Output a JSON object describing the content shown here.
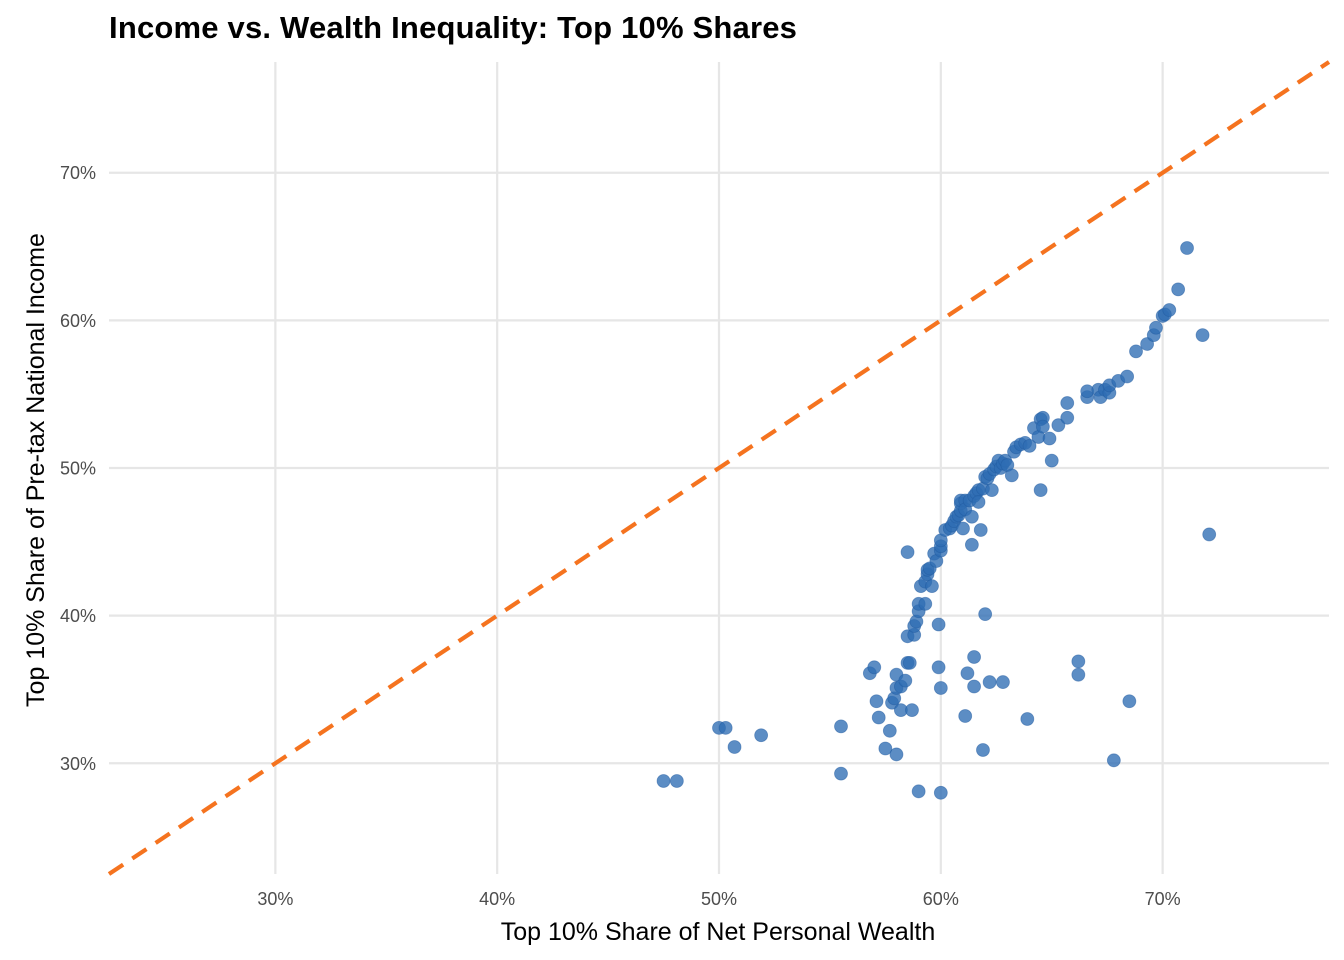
{
  "chart_data": {
    "type": "scatter",
    "title": "Income vs. Wealth Inequality: Top 10% Shares",
    "xlabel": "Top 10% Share of Net Personal Wealth",
    "ylabel": "Top 10% Share of Pre-tax National Income",
    "xlim": [
      0.225,
      0.775
    ],
    "ylim": [
      0.225,
      0.775
    ],
    "x_ticks": [
      0.3,
      0.4,
      0.5,
      0.6,
      0.7
    ],
    "x_tick_labels": [
      "30%",
      "40%",
      "50%",
      "60%",
      "70%"
    ],
    "y_ticks": [
      0.3,
      0.4,
      0.5,
      0.6,
      0.7
    ],
    "y_tick_labels": [
      "30%",
      "40%",
      "50%",
      "60%",
      "70%"
    ],
    "grid": true,
    "reference_line": {
      "slope": 1,
      "intercept": 0,
      "style": "dashed",
      "color": "#F5731F"
    },
    "point_color": "#2E6DB4",
    "points": [
      [
        0.475,
        0.288
      ],
      [
        0.481,
        0.288
      ],
      [
        0.5,
        0.324
      ],
      [
        0.503,
        0.324
      ],
      [
        0.507,
        0.311
      ],
      [
        0.519,
        0.319
      ],
      [
        0.555,
        0.325
      ],
      [
        0.555,
        0.293
      ],
      [
        0.568,
        0.361
      ],
      [
        0.57,
        0.365
      ],
      [
        0.571,
        0.342
      ],
      [
        0.572,
        0.331
      ],
      [
        0.575,
        0.31
      ],
      [
        0.577,
        0.322
      ],
      [
        0.578,
        0.341
      ],
      [
        0.579,
        0.344
      ],
      [
        0.58,
        0.306
      ],
      [
        0.58,
        0.351
      ],
      [
        0.58,
        0.36
      ],
      [
        0.582,
        0.336
      ],
      [
        0.582,
        0.352
      ],
      [
        0.584,
        0.356
      ],
      [
        0.585,
        0.368
      ],
      [
        0.585,
        0.386
      ],
      [
        0.585,
        0.443
      ],
      [
        0.586,
        0.368
      ],
      [
        0.587,
        0.336
      ],
      [
        0.588,
        0.387
      ],
      [
        0.588,
        0.393
      ],
      [
        0.589,
        0.396
      ],
      [
        0.59,
        0.281
      ],
      [
        0.59,
        0.403
      ],
      [
        0.59,
        0.408
      ],
      [
        0.591,
        0.42
      ],
      [
        0.593,
        0.408
      ],
      [
        0.593,
        0.423
      ],
      [
        0.594,
        0.428
      ],
      [
        0.594,
        0.431
      ],
      [
        0.595,
        0.432
      ],
      [
        0.596,
        0.42
      ],
      [
        0.597,
        0.442
      ],
      [
        0.598,
        0.437
      ],
      [
        0.599,
        0.394
      ],
      [
        0.599,
        0.365
      ],
      [
        0.6,
        0.444
      ],
      [
        0.6,
        0.447
      ],
      [
        0.6,
        0.451
      ],
      [
        0.6,
        0.28
      ],
      [
        0.6,
        0.351
      ],
      [
        0.602,
        0.458
      ],
      [
        0.604,
        0.459
      ],
      [
        0.605,
        0.461
      ],
      [
        0.606,
        0.464
      ],
      [
        0.607,
        0.467
      ],
      [
        0.608,
        0.468
      ],
      [
        0.609,
        0.471
      ],
      [
        0.609,
        0.476
      ],
      [
        0.609,
        0.478
      ],
      [
        0.61,
        0.459
      ],
      [
        0.611,
        0.478
      ],
      [
        0.611,
        0.332
      ],
      [
        0.611,
        0.472
      ],
      [
        0.612,
        0.361
      ],
      [
        0.613,
        0.478
      ],
      [
        0.614,
        0.467
      ],
      [
        0.614,
        0.448
      ],
      [
        0.615,
        0.481
      ],
      [
        0.615,
        0.352
      ],
      [
        0.615,
        0.372
      ],
      [
        0.616,
        0.483
      ],
      [
        0.617,
        0.485
      ],
      [
        0.617,
        0.477
      ],
      [
        0.618,
        0.458
      ],
      [
        0.619,
        0.309
      ],
      [
        0.619,
        0.486
      ],
      [
        0.62,
        0.401
      ],
      [
        0.62,
        0.494
      ],
      [
        0.621,
        0.493
      ],
      [
        0.622,
        0.355
      ],
      [
        0.622,
        0.496
      ],
      [
        0.623,
        0.485
      ],
      [
        0.624,
        0.499
      ],
      [
        0.625,
        0.501
      ],
      [
        0.626,
        0.505
      ],
      [
        0.627,
        0.5
      ],
      [
        0.628,
        0.503
      ],
      [
        0.628,
        0.355
      ],
      [
        0.629,
        0.505
      ],
      [
        0.63,
        0.502
      ],
      [
        0.632,
        0.495
      ],
      [
        0.633,
        0.511
      ],
      [
        0.634,
        0.514
      ],
      [
        0.636,
        0.516
      ],
      [
        0.638,
        0.517
      ],
      [
        0.64,
        0.515
      ],
      [
        0.639,
        0.33
      ],
      [
        0.642,
        0.527
      ],
      [
        0.644,
        0.521
      ],
      [
        0.645,
        0.533
      ],
      [
        0.645,
        0.485
      ],
      [
        0.646,
        0.534
      ],
      [
        0.646,
        0.528
      ],
      [
        0.649,
        0.52
      ],
      [
        0.65,
        0.505
      ],
      [
        0.653,
        0.529
      ],
      [
        0.657,
        0.534
      ],
      [
        0.657,
        0.544
      ],
      [
        0.662,
        0.369
      ],
      [
        0.662,
        0.36
      ],
      [
        0.666,
        0.548
      ],
      [
        0.666,
        0.552
      ],
      [
        0.671,
        0.553
      ],
      [
        0.672,
        0.548
      ],
      [
        0.674,
        0.553
      ],
      [
        0.676,
        0.551
      ],
      [
        0.676,
        0.556
      ],
      [
        0.678,
        0.302
      ],
      [
        0.68,
        0.559
      ],
      [
        0.684,
        0.562
      ],
      [
        0.685,
        0.342
      ],
      [
        0.688,
        0.579
      ],
      [
        0.693,
        0.584
      ],
      [
        0.696,
        0.59
      ],
      [
        0.697,
        0.595
      ],
      [
        0.7,
        0.603
      ],
      [
        0.701,
        0.604
      ],
      [
        0.703,
        0.607
      ],
      [
        0.707,
        0.621
      ],
      [
        0.711,
        0.649
      ],
      [
        0.718,
        0.59
      ],
      [
        0.721,
        0.455
      ]
    ]
  }
}
